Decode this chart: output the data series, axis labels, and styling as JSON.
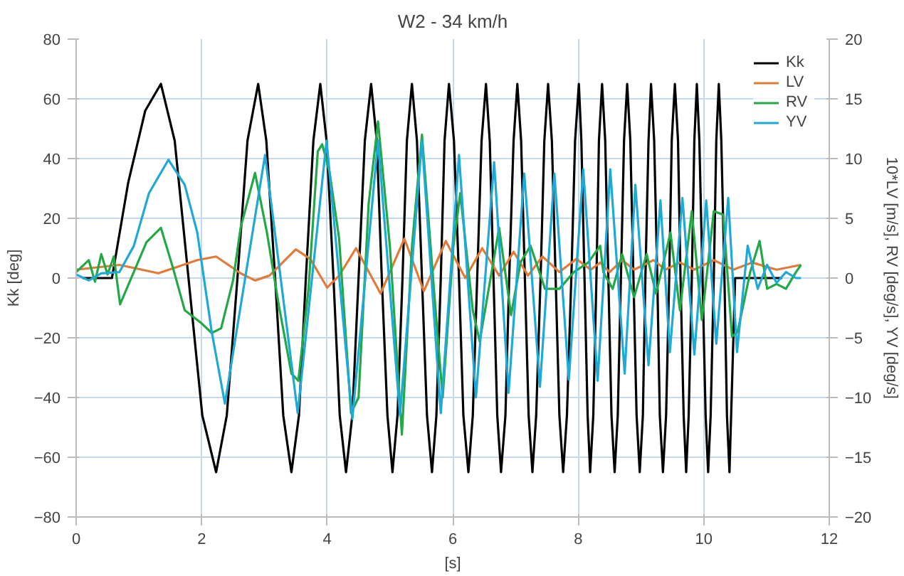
{
  "chart_data": {
    "type": "line",
    "title": "W2 - 34 km/h",
    "xlabel": "[s]",
    "ylabel": "Kk [deg]",
    "y2label": "10*LV [m/s], RV [deg/s], YV [deg/s]",
    "xlim": [
      0,
      12
    ],
    "xticks": [
      0,
      2,
      4,
      6,
      8,
      10,
      12
    ],
    "ylim": [
      -80,
      80
    ],
    "yticks": [
      -80,
      -60,
      -40,
      -20,
      0,
      20,
      40,
      60,
      80
    ],
    "y2lim": [
      -20,
      20
    ],
    "y2ticks": [
      -20,
      -15,
      -10,
      -5,
      0,
      5,
      10,
      15,
      20
    ],
    "grid": true,
    "legend": "top right",
    "series": [
      {
        "name": "Kk",
        "color": "#000000",
        "x": [
          0.1,
          0.57,
          0.83,
          1.1,
          1.35,
          1.57,
          1.79,
          2.01,
          2.23,
          2.4,
          2.57,
          2.73,
          2.9,
          3.03,
          3.17,
          3.3,
          3.43,
          3.55,
          3.66,
          3.78,
          3.89,
          3.99,
          4.1,
          4.2,
          4.3,
          4.4,
          4.5,
          4.6,
          4.7,
          4.79,
          4.87,
          4.96,
          5.04,
          5.12,
          5.2,
          5.27,
          5.35,
          5.43,
          5.51,
          5.59,
          5.67,
          5.74,
          5.81,
          5.87,
          5.94,
          6.02,
          6.1,
          6.17,
          6.25,
          6.32,
          6.39,
          6.46,
          6.53,
          6.59,
          6.65,
          6.71,
          6.77,
          6.84,
          6.9,
          6.97,
          7.03,
          7.09,
          7.15,
          7.21,
          7.27,
          7.33,
          7.4,
          7.46,
          7.52,
          7.58,
          7.64,
          7.7,
          7.76,
          7.82,
          7.89,
          7.95,
          8.01,
          8.05,
          8.1,
          8.15,
          8.19,
          8.24,
          8.29,
          8.33,
          8.38,
          8.43,
          8.48,
          8.53,
          8.58,
          8.63,
          8.68,
          8.73,
          8.78,
          8.83,
          8.88,
          8.93,
          8.98,
          9.03,
          9.07,
          9.12,
          9.16,
          9.21,
          9.26,
          9.3,
          9.35,
          9.4,
          9.45,
          9.49,
          9.54,
          9.59,
          9.63,
          9.68,
          9.72,
          9.76,
          9.81,
          9.85,
          9.89,
          9.93,
          9.98,
          10.03,
          10.07,
          10.11,
          10.16,
          10.2,
          10.24,
          10.28,
          10.33,
          10.37,
          10.41,
          10.5,
          11.25
        ],
        "values": [
          0,
          0,
          32,
          56,
          65,
          46,
          0,
          -46,
          -65,
          -46,
          0,
          46,
          65,
          46,
          0,
          -46,
          -65,
          -46,
          0,
          46,
          65,
          46,
          0,
          -46,
          -65,
          -46,
          0,
          46,
          65,
          46,
          0,
          -46,
          -65,
          -46,
          0,
          46,
          65,
          46,
          0,
          -46,
          -65,
          -46,
          0,
          46,
          65,
          46,
          0,
          -46,
          -65,
          -46,
          0,
          46,
          65,
          46,
          0,
          -46,
          -65,
          -46,
          0,
          46,
          65,
          46,
          0,
          -46,
          -65,
          -46,
          0,
          46,
          65,
          46,
          0,
          -46,
          -65,
          -46,
          0,
          46,
          65,
          46,
          0,
          -46,
          -65,
          -46,
          0,
          46,
          65,
          46,
          0,
          -46,
          -65,
          -46,
          0,
          46,
          65,
          46,
          0,
          -46,
          -65,
          -46,
          0,
          46,
          65,
          46,
          0,
          -46,
          -65,
          -46,
          0,
          46,
          65,
          46,
          0,
          -46,
          -65,
          -46,
          0,
          46,
          65,
          46,
          0,
          -46,
          -65,
          -46,
          0,
          46,
          65,
          46,
          0,
          -46,
          -65,
          0,
          0
        ]
      },
      {
        "name": "LV",
        "color": "#e07b39",
        "axis": "y2",
        "x": [
          0.0,
          0.69,
          1.31,
          1.93,
          2.23,
          2.62,
          2.85,
          3.08,
          3.5,
          3.73,
          4.0,
          4.19,
          4.46,
          4.85,
          5.23,
          5.54,
          5.89,
          6.2,
          6.47,
          6.74,
          6.97,
          7.2,
          7.43,
          7.7,
          7.97,
          8.2,
          8.35,
          8.5,
          8.7,
          8.89,
          9.2,
          9.39,
          9.62,
          9.85,
          10.16,
          10.47,
          10.77,
          11.16,
          11.55
        ],
        "values": [
          0.7,
          1.1,
          0.4,
          1.5,
          1.8,
          0.4,
          -0.2,
          0.2,
          2.4,
          1.6,
          -0.8,
          0.2,
          2.5,
          -1.3,
          3.3,
          -1.1,
          3.1,
          0,
          2.5,
          0.2,
          2.2,
          0.2,
          1.8,
          0.5,
          1.6,
          0.7,
          1.3,
          0.5,
          1.5,
          0.7,
          1.5,
          0.7,
          1.3,
          0.7,
          1.5,
          0.7,
          1.3,
          0.7,
          1.1
        ]
      },
      {
        "name": "RV",
        "color": "#22a845",
        "axis": "y2",
        "x": [
          0.0,
          0.2,
          0.3,
          0.4,
          0.5,
          0.6,
          0.7,
          1.12,
          1.35,
          1.54,
          1.73,
          2.0,
          2.16,
          2.31,
          2.5,
          2.62,
          2.85,
          3.04,
          3.23,
          3.43,
          3.54,
          3.7,
          3.85,
          3.92,
          4.04,
          4.19,
          4.38,
          4.5,
          4.66,
          4.81,
          5.0,
          5.19,
          5.35,
          5.51,
          5.7,
          5.84,
          6.01,
          6.12,
          6.32,
          6.43,
          6.62,
          6.74,
          6.93,
          7.08,
          7.24,
          7.47,
          7.7,
          7.93,
          8.16,
          8.35,
          8.4,
          8.55,
          8.7,
          8.89,
          9.09,
          9.24,
          9.47,
          9.62,
          9.81,
          9.97,
          10.16,
          10.31,
          10.45,
          10.54,
          10.74,
          10.89,
          11.01,
          11.16,
          11.31,
          11.47,
          11.55
        ],
        "values": [
          0.5,
          1.5,
          -0.3,
          2,
          0.3,
          1.8,
          -2.2,
          3.0,
          4.2,
          0.9,
          -2.7,
          -3.8,
          -4.6,
          -4.2,
          -0.2,
          4.2,
          8.8,
          3.8,
          -2.3,
          -8.0,
          -8.6,
          -1,
          10.6,
          11.2,
          8.8,
          3.3,
          -11.3,
          -10,
          6.2,
          13.1,
          2.6,
          -13.1,
          2.6,
          12.0,
          -0.9,
          -10,
          2.6,
          7.1,
          -2.7,
          -5.3,
          0.5,
          4.2,
          -3.1,
          1.3,
          2.7,
          -0.9,
          -0.9,
          0.5,
          1.3,
          2.7,
          0.5,
          -0.9,
          2.0,
          -1.6,
          2.0,
          -1.3,
          3.8,
          -2.7,
          5.6,
          -3.5,
          5.6,
          5.3,
          -4.9,
          -4.5,
          0.5,
          3.1,
          -0.9,
          -0.5,
          -0.9,
          0.5,
          1.1
        ]
      },
      {
        "name": "YV",
        "color": "#1fa9d6",
        "axis": "y2",
        "x": [
          0.0,
          0.2,
          0.4,
          0.69,
          0.92,
          1.16,
          1.47,
          1.73,
          1.93,
          2.16,
          2.37,
          3.01,
          3.53,
          3.99,
          4.4,
          4.81,
          5.16,
          5.51,
          5.81,
          6.1,
          6.37,
          6.66,
          6.89,
          7.14,
          7.39,
          7.62,
          7.85,
          8.08,
          8.31,
          8.51,
          8.74,
          8.91,
          9.12,
          9.31,
          9.46,
          9.66,
          9.85,
          10.04,
          10.2,
          10.39,
          10.53,
          10.7,
          10.86,
          11.01,
          11.16,
          11.31,
          11.47,
          11.55
        ],
        "values": [
          0.3,
          -0.2,
          0.4,
          0.5,
          2.7,
          7.1,
          9.9,
          7.8,
          3.8,
          -4.5,
          -10.5,
          10.3,
          -11.3,
          11.5,
          -11.8,
          11.5,
          -11.5,
          11.5,
          -11.3,
          10.3,
          -10.0,
          9.7,
          -9.6,
          8.75,
          -9.1,
          8.75,
          -8.5,
          9.1,
          -8.6,
          9.1,
          -8.0,
          7.8,
          -7.3,
          6.5,
          -6.2,
          6.7,
          -6.4,
          6.5,
          -5.5,
          6.7,
          -6.2,
          2.7,
          -0.9,
          1.1,
          -0.4,
          0.5,
          0,
          0
        ]
      }
    ]
  }
}
